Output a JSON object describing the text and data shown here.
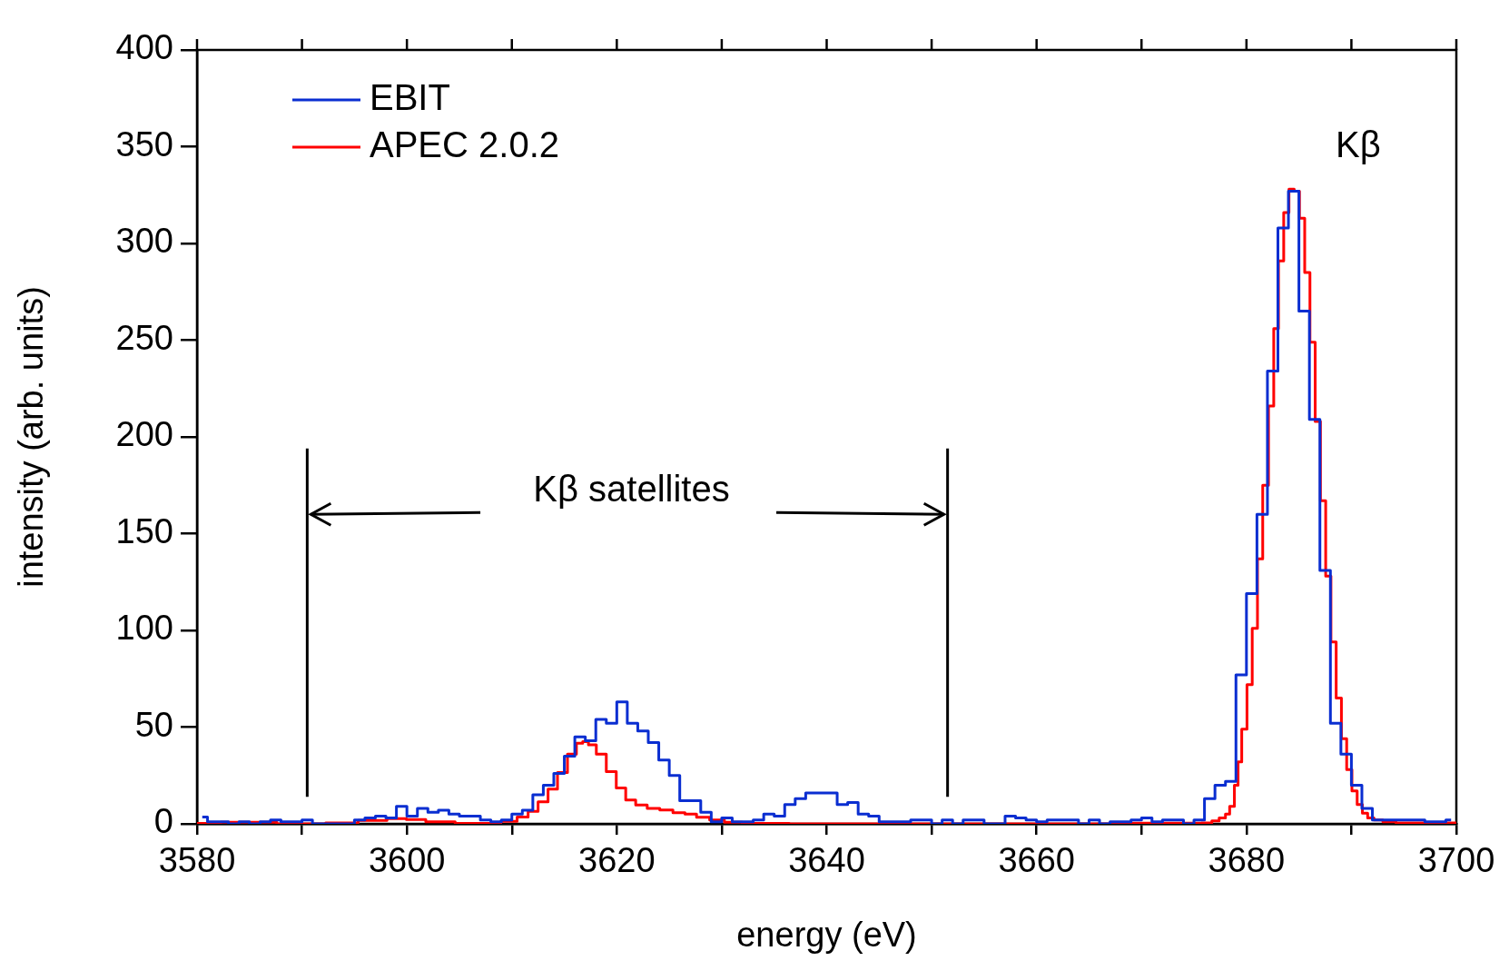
{
  "chart_data": {
    "type": "step",
    "xlabel": "energy (eV)",
    "ylabel": "intensity (arb. units)",
    "xlim": [
      3580,
      3700
    ],
    "xticks": [
      3580,
      {
        "value": 3590,
        "label": null
      },
      3600,
      {
        "value": 3610,
        "label": null
      },
      3620,
      {
        "value": 3630,
        "label": null
      },
      3640,
      {
        "value": 3650,
        "label": null
      },
      3660,
      {
        "value": 3670,
        "label": null
      },
      3680,
      {
        "value": 3690,
        "label": null
      },
      3700
    ],
    "ylim": [
      0,
      400
    ],
    "yticks": [
      0,
      50,
      100,
      150,
      200,
      250,
      300,
      350,
      400
    ],
    "grid": false,
    "legend": "top left",
    "marker": "none",
    "line_style": "solid",
    "annotations": [
      "Kβ",
      "Kβ satellites"
    ],
    "series": [
      {
        "name": "EBIT",
        "color": "#0a2ed1",
        "x": [
          3580.5,
          3581.5,
          3582.5,
          3583.5,
          3584.5,
          3585.5,
          3586.5,
          3587.5,
          3588.5,
          3589.5,
          3590.5,
          3591.5,
          3592.5,
          3593.5,
          3594.5,
          3595.5,
          3596.5,
          3597.5,
          3598.5,
          3599.5,
          3600.5,
          3601.5,
          3602.5,
          3603.5,
          3604.5,
          3605.5,
          3606.5,
          3607.5,
          3608.5,
          3609.5,
          3610.5,
          3611.5,
          3612.5,
          3613.5,
          3614.5,
          3615.5,
          3616.5,
          3617.5,
          3618.5,
          3619.5,
          3620.5,
          3621.5,
          3622.5,
          3623.5,
          3624.5,
          3625.5,
          3626.5,
          3627.5,
          3628.5,
          3629.5,
          3630.5,
          3631.5,
          3632.5,
          3633.5,
          3634.5,
          3635.5,
          3636.5,
          3637.5,
          3638.5,
          3639.5,
          3640.5,
          3641.5,
          3642.5,
          3643.5,
          3644.5,
          3645.5,
          3646.5,
          3647.5,
          3648.5,
          3649.5,
          3650.5,
          3651.5,
          3652.5,
          3653.5,
          3654.5,
          3655.5,
          3656.5,
          3657.5,
          3658.5,
          3659.5,
          3660.5,
          3661.5,
          3662.5,
          3663.5,
          3664.5,
          3665.5,
          3666.5,
          3667.5,
          3668.5,
          3669.5,
          3670.5,
          3671.5,
          3672.5,
          3673.5,
          3674.5,
          3675.5,
          3676.5,
          3677.5,
          3678.5,
          3679.5,
          3680.5,
          3681.5,
          3682.5,
          3683.5,
          3684.5,
          3685.5,
          3686.5,
          3687.5,
          3688.5,
          3689.5,
          3690.5,
          3691.5,
          3692.5,
          3693.5,
          3694.5,
          3695.5,
          3696.5,
          3697.5,
          3698.5,
          3699.5
        ],
        "values": [
          3.5,
          1,
          1,
          0,
          1,
          0,
          1,
          2,
          1,
          1,
          2,
          0,
          0,
          0,
          0,
          2,
          3,
          4,
          3,
          9,
          4,
          8,
          6,
          7,
          5,
          4,
          4,
          2,
          1,
          2,
          5,
          7,
          15,
          20,
          26,
          35,
          45,
          43,
          54,
          52,
          63,
          52,
          48,
          42,
          33,
          25,
          12,
          12,
          6,
          1,
          3,
          1,
          1,
          2,
          5,
          4,
          10,
          13,
          16,
          16,
          16,
          10,
          11,
          5,
          4,
          1,
          1,
          1,
          2,
          2,
          0,
          2,
          0,
          2,
          2,
          0,
          0,
          4,
          3,
          2,
          1,
          2,
          2,
          2,
          0,
          2,
          0,
          1,
          1,
          2,
          3,
          1,
          2,
          2,
          0,
          2,
          13,
          20,
          22,
          77,
          119,
          160,
          234,
          308,
          327,
          265,
          209,
          131,
          52,
          36,
          20,
          8,
          2,
          2,
          2,
          2,
          2,
          1,
          1,
          2
        ]
      },
      {
        "name": "APEC 2.0.2",
        "color": "#ff0000",
        "x": [
          3580,
          3584.5,
          3590.7,
          3593.8,
          3596.9,
          3599.3,
          3600.6,
          3603,
          3606.2,
          3608,
          3609.9,
          3611.1,
          3612,
          3613,
          3613.9,
          3614.8,
          3615.8,
          3616.5,
          3617,
          3617.6,
          3618.5,
          3619.5,
          3620.4,
          3621.3,
          3622.3,
          3623.5,
          3624.7,
          3626,
          3627,
          3628.2,
          3629.5,
          3631,
          3632.9,
          3640,
          3660,
          3675,
          3676.4,
          3677,
          3677.8,
          3678.2,
          3678.6,
          3679.1,
          3679.3,
          3679.8,
          3680.3,
          3680.8,
          3681.3,
          3681.8,
          3682.4,
          3682.8,
          3683.3,
          3683.8,
          3684.3,
          3684.8,
          3685.3,
          3685.8,
          3686.3,
          3686.8,
          3687.3,
          3687.8,
          3688.3,
          3688.8,
          3689.3,
          3689.8,
          3690.3,
          3690.8,
          3691.3,
          3691.8,
          3692.5,
          3693.5,
          3695,
          3700
        ],
        "values": [
          0.2,
          0.8,
          0,
          0.5,
          1.8,
          2.7,
          2.2,
          1,
          0.2,
          0.2,
          1.3,
          3.5,
          6.4,
          11.4,
          18,
          26.5,
          36,
          41.7,
          42.5,
          40.8,
          36,
          27,
          18.5,
          12.3,
          9.7,
          8,
          7.2,
          5.8,
          5,
          3.4,
          2,
          0.8,
          0.2,
          0,
          0,
          0.3,
          0.5,
          1.5,
          3,
          5,
          9,
          20,
          32,
          49,
          72,
          101,
          137,
          175,
          216,
          256,
          291,
          316,
          328,
          327,
          313,
          285,
          249,
          208,
          167,
          128,
          94,
          65,
          44,
          28,
          17,
          10,
          5.5,
          3,
          2,
          1,
          0.5,
          0.5
        ]
      }
    ]
  }
}
